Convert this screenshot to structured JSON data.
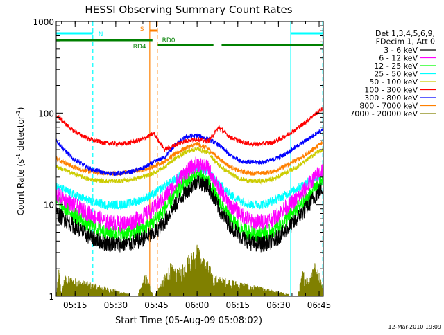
{
  "chart_data": {
    "type": "line",
    "title": "HESSI Observing Summary Count Rates",
    "xlabel": "Start Time (05-Aug-09 05:08:02)",
    "ylabel_main": "Count Rate (s",
    "ylabel_sup1": "-1",
    "ylabel_mid": " detector",
    "ylabel_sup2": "-1",
    "ylabel_end": ")",
    "yscale": "log",
    "ylim": [
      1,
      1000
    ],
    "xlim_minutes": [
      0,
      98.5
    ],
    "x_ticks": [
      {
        "label": "05:15",
        "minutes": 6.97
      },
      {
        "label": "05:30",
        "minutes": 21.97
      },
      {
        "label": "05:45",
        "minutes": 36.97
      },
      {
        "label": "06:00",
        "minutes": 51.97
      },
      {
        "label": "06:15",
        "minutes": 66.97
      },
      {
        "label": "06:30",
        "minutes": 81.97
      },
      {
        "label": "06:45",
        "minutes": 96.97
      }
    ],
    "y_ticks": [
      {
        "label": "1",
        "value": 1
      },
      {
        "label": "10",
        "value": 10
      },
      {
        "label": "100",
        "value": 100
      },
      {
        "label": "1000",
        "value": 1000
      }
    ],
    "legend_header": [
      "Det 1,3,4,5,6,9,",
      "FDecim 1, Att 0"
    ],
    "legend_placement": "right",
    "series": [
      {
        "name": "3 - 6 keV",
        "color": "#000000",
        "x": [
          0,
          6,
          12,
          18,
          24,
          28,
          32,
          36,
          40,
          44,
          48,
          52,
          56,
          60,
          64,
          68,
          72,
          76,
          80,
          84,
          88,
          92,
          96,
          98
        ],
        "y": [
          8,
          6,
          4.5,
          3.8,
          3.7,
          3.8,
          4.2,
          4.8,
          6.5,
          10,
          14,
          18,
          16,
          9,
          6,
          4.5,
          3.8,
          3.7,
          4,
          5,
          6.5,
          9,
          13,
          15
        ]
      },
      {
        "name": "6 - 12 keV",
        "color": "#ff00ff",
        "x": [
          0,
          6,
          12,
          18,
          24,
          28,
          32,
          36,
          40,
          44,
          48,
          52,
          56,
          60,
          64,
          68,
          72,
          76,
          80,
          84,
          88,
          92,
          96,
          98
        ],
        "y": [
          13,
          10,
          8,
          6.5,
          6.2,
          6.5,
          7.5,
          9,
          12,
          17,
          23,
          28,
          25,
          15,
          10,
          8,
          6.5,
          6.5,
          7,
          9,
          11,
          15,
          21,
          24
        ]
      },
      {
        "name": "12 - 25 keV",
        "color": "#00ff00",
        "x": [
          0,
          6,
          12,
          18,
          24,
          28,
          32,
          36,
          40,
          44,
          48,
          52,
          56,
          60,
          64,
          68,
          72,
          76,
          80,
          84,
          88,
          92,
          96,
          98
        ],
        "y": [
          11,
          8,
          6,
          5,
          4.8,
          5,
          5.5,
          6.5,
          9,
          13,
          18,
          21,
          18,
          11,
          7,
          5.5,
          4.8,
          4.8,
          5.2,
          6.5,
          8.5,
          11,
          16,
          18
        ]
      },
      {
        "name": "25 - 50 keV",
        "color": "#00ffff",
        "x": [
          0,
          6,
          12,
          18,
          24,
          28,
          32,
          36,
          40,
          44,
          48,
          52,
          56,
          60,
          64,
          68,
          72,
          76,
          80,
          84,
          88,
          92,
          96,
          98
        ],
        "y": [
          16,
          13,
          11,
          10,
          10,
          10.5,
          11.5,
          13,
          16,
          19,
          23,
          25,
          23,
          17,
          13,
          11,
          10,
          10,
          11,
          12.5,
          14.5,
          17,
          20,
          22
        ]
      },
      {
        "name": "50 - 100 keV",
        "color": "#cccc00",
        "x": [
          0,
          6,
          12,
          18,
          24,
          28,
          32,
          36,
          40,
          44,
          48,
          52,
          56,
          60,
          64,
          68,
          72,
          76,
          80,
          84,
          88,
          92,
          96,
          98
        ],
        "y": [
          26,
          22,
          19,
          18,
          18,
          19,
          20,
          22,
          26,
          32,
          38,
          41,
          37,
          27,
          22,
          19,
          18,
          18,
          19,
          22,
          25,
          30,
          37,
          40
        ]
      },
      {
        "name": "100 - 300 keV",
        "color": "#ff0000",
        "x": [
          0,
          6,
          12,
          18,
          24,
          28,
          32,
          36,
          40,
          44,
          48,
          52,
          56,
          60,
          64,
          68,
          72,
          76,
          80,
          84,
          88,
          92,
          96,
          98
        ],
        "y": [
          95,
          65,
          52,
          47,
          46,
          48,
          52,
          60,
          40,
          45,
          50,
          52,
          49,
          70,
          55,
          49,
          46,
          46,
          48,
          55,
          65,
          80,
          100,
          110
        ]
      },
      {
        "name": "300 - 800 keV",
        "color": "#0000ff",
        "x": [
          0,
          6,
          12,
          18,
          24,
          28,
          32,
          36,
          40,
          44,
          48,
          52,
          56,
          60,
          64,
          68,
          72,
          76,
          80,
          84,
          88,
          92,
          96,
          98
        ],
        "y": [
          50,
          32,
          25,
          22,
          22,
          23,
          25,
          29,
          33,
          45,
          55,
          57,
          52,
          45,
          35,
          30,
          29,
          29,
          31,
          35,
          42,
          50,
          60,
          65
        ]
      },
      {
        "name": "800 - 7000 keV",
        "color": "#ff8000",
        "x": [
          0,
          6,
          12,
          18,
          24,
          28,
          32,
          36,
          40,
          44,
          48,
          52,
          56,
          60,
          64,
          68,
          72,
          76,
          80,
          84,
          88,
          92,
          96,
          98
        ],
        "y": [
          32,
          26,
          23,
          22,
          22,
          23,
          24,
          26,
          30,
          36,
          42,
          46,
          41,
          32,
          26,
          23,
          22,
          22,
          23,
          26,
          30,
          35,
          43,
          47
        ]
      },
      {
        "name": "7000 - 20000 keV",
        "color": "#808000",
        "x": [
          0,
          1,
          2,
          3,
          30,
          33,
          36,
          40,
          42,
          45,
          50,
          52,
          54,
          56,
          58,
          89,
          91,
          93,
          95,
          97,
          98
        ],
        "y": [
          1,
          1.9,
          1,
          1.6,
          1,
          1.7,
          1,
          1.6,
          2.1,
          1.8,
          2.9,
          3.3,
          2.5,
          2.2,
          1.6,
          1,
          1.8,
          1.5,
          2.3,
          1.7,
          1.3
        ]
      }
    ],
    "status_bars": [
      {
        "label": "N",
        "color": "#00ffff",
        "segments_minutes": [
          [
            0,
            13.5
          ],
          [
            86.5,
            98.5
          ]
        ]
      },
      {
        "label": "S",
        "color": "#ff8000",
        "segments_minutes": [
          [
            34.5,
            37.5
          ]
        ]
      },
      {
        "label": "RD0",
        "color": "#008000",
        "segments_minutes": [
          [
            37.5,
            58
          ],
          [
            61,
            98.5
          ]
        ]
      },
      {
        "label": "RD4",
        "color": "#008000",
        "segments_minutes": [
          [
            0,
            35.5
          ]
        ]
      }
    ],
    "vertical_markers": [
      {
        "color": "#00ffff",
        "style": "dashed",
        "minutes": 13.5
      },
      {
        "color": "#ff8000",
        "style": "solid",
        "minutes": 34.5
      },
      {
        "color": "#ff8000",
        "style": "dashed",
        "minutes": 37.3
      },
      {
        "color": "#00ffff",
        "style": "solid",
        "minutes": 86.5
      },
      {
        "color": "#00ffff",
        "style": "dashed",
        "minutes": 98.3
      }
    ],
    "footer_date": "12-Mar-2010 19:09"
  }
}
